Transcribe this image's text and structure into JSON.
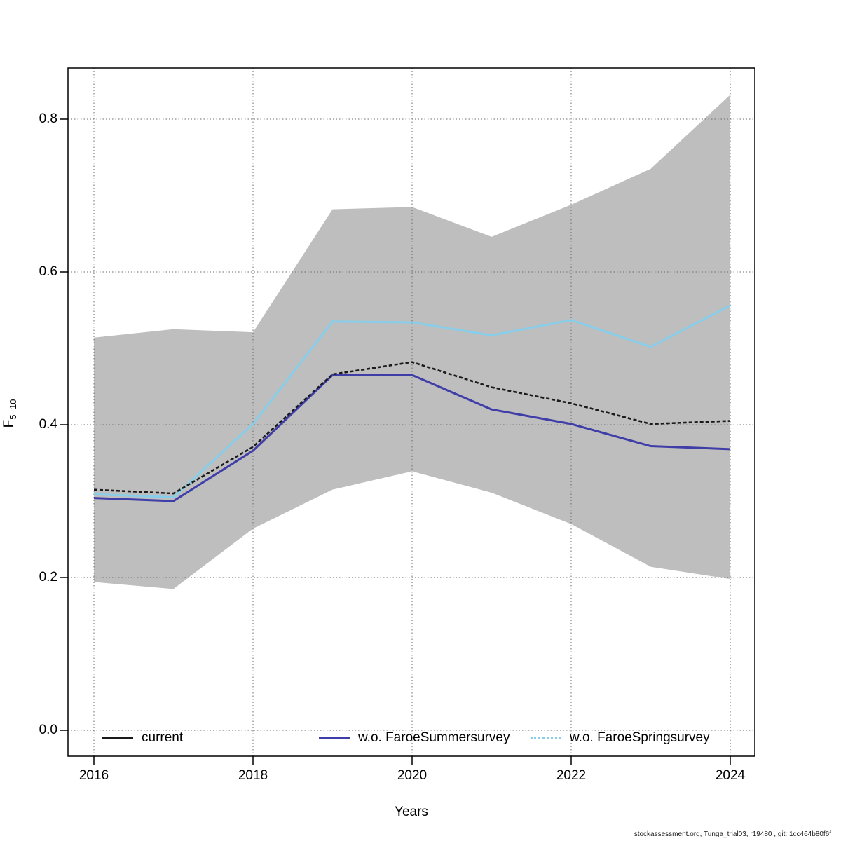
{
  "footer": {
    "credit": "stockassessment.org, Tunga_trial03, r19480 , git: 1cc464b80f6f"
  },
  "chart_data": {
    "type": "line",
    "title": "",
    "xlabel": "Years",
    "ylabel_main": "F",
    "ylabel_sub": "5−10",
    "xlim": [
      2015.67,
      2024.31
    ],
    "ylim": [
      0,
      0.867
    ],
    "grid": "dotted",
    "legend_position": "bottom-inside",
    "xticks": [
      "2016",
      "2018",
      "2020",
      "2022",
      "2024"
    ],
    "xtick_values": [
      2016,
      2018,
      2020,
      2022,
      2024
    ],
    "yticks": [
      "0.0",
      "0.2",
      "0.4",
      "0.6",
      "0.8"
    ],
    "ytick_values": [
      0.0,
      0.2,
      0.4,
      0.6,
      0.8
    ],
    "x": [
      2016,
      2017,
      2018,
      2019,
      2020,
      2021,
      2022,
      2023,
      2024
    ],
    "band": {
      "name": "current-confidence-band",
      "color": "#bebebe",
      "upper": [
        0.514,
        0.525,
        0.521,
        0.682,
        0.685,
        0.646,
        0.688,
        0.735,
        0.832
      ],
      "lower": [
        0.194,
        0.185,
        0.264,
        0.315,
        0.339,
        0.311,
        0.27,
        0.214,
        0.198
      ]
    },
    "series": [
      {
        "name": "current",
        "color": "#1a1a1a",
        "width": 2.6,
        "plot_dash": "5,3",
        "legend_dash": false,
        "values": [
          0.315,
          0.31,
          0.371,
          0.466,
          0.482,
          0.449,
          0.428,
          0.401,
          0.405
        ]
      },
      {
        "name": "w.o. FaroeSummersurvey",
        "color": "#3f3da8",
        "width": 3,
        "plot_dash": "",
        "legend_dash": false,
        "values": [
          0.304,
          0.3,
          0.366,
          0.465,
          0.465,
          0.42,
          0.401,
          0.372,
          0.368
        ]
      },
      {
        "name": "w.o. FaroeSpringsurvey",
        "color": "#87ceeb",
        "width": 3,
        "plot_dash": "",
        "legend_dash": true,
        "values": [
          0.309,
          0.305,
          0.401,
          0.535,
          0.534,
          0.517,
          0.537,
          0.502,
          0.556
        ]
      }
    ]
  }
}
